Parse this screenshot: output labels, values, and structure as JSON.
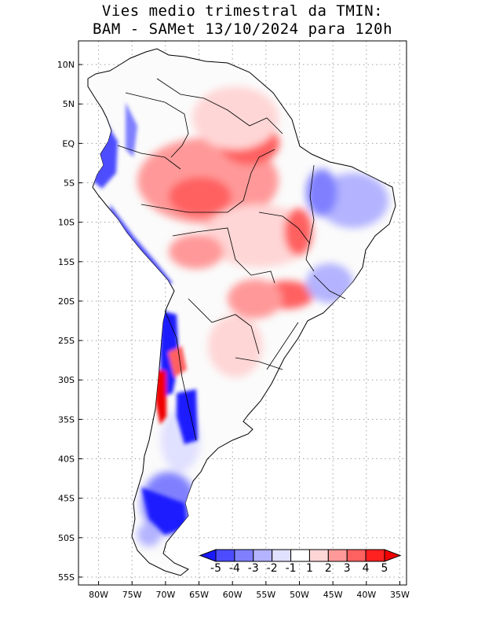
{
  "title_line1": "Vies medio trimestral da TMIN:",
  "title_line2": "BAM - SAMet 13/10/2024  para 120h",
  "lat_ticks": [
    {
      "v": 10,
      "label": "10N"
    },
    {
      "v": 5,
      "label": "5N"
    },
    {
      "v": 0,
      "label": "EQ"
    },
    {
      "v": -5,
      "label": "5S"
    },
    {
      "v": -10,
      "label": "10S"
    },
    {
      "v": -15,
      "label": "15S"
    },
    {
      "v": -20,
      "label": "20S"
    },
    {
      "v": -25,
      "label": "25S"
    },
    {
      "v": -30,
      "label": "30S"
    },
    {
      "v": -35,
      "label": "35S"
    },
    {
      "v": -40,
      "label": "40S"
    },
    {
      "v": -45,
      "label": "45S"
    },
    {
      "v": -50,
      "label": "50S"
    },
    {
      "v": -55,
      "label": "55S"
    }
  ],
  "lon_ticks": [
    {
      "v": -80,
      "label": "80W"
    },
    {
      "v": -75,
      "label": "75W"
    },
    {
      "v": -70,
      "label": "70W"
    },
    {
      "v": -65,
      "label": "65W"
    },
    {
      "v": -60,
      "label": "60W"
    },
    {
      "v": -55,
      "label": "55W"
    },
    {
      "v": -50,
      "label": "50W"
    },
    {
      "v": -45,
      "label": "45W"
    },
    {
      "v": -40,
      "label": "40W"
    },
    {
      "v": -35,
      "label": "35W"
    }
  ],
  "lon_range": [
    -83,
    -34
  ],
  "lat_range": [
    -56,
    13
  ],
  "colorbar": {
    "labels": [
      "-5",
      "-4",
      "-3",
      "-2",
      "-1",
      "1",
      "2",
      "3",
      "4",
      "5"
    ],
    "colors": [
      "#1a1aff",
      "#4d4dff",
      "#8080ff",
      "#b3b3ff",
      "#e0e0ff",
      "#ffffff",
      "#ffd6d6",
      "#ff9999",
      "#ff6060",
      "#ff2020",
      "#f00000"
    ]
  },
  "colors": {
    "grid": "#a0a0a0",
    "land": "#fbfbfb",
    "coast": "#000000"
  }
}
